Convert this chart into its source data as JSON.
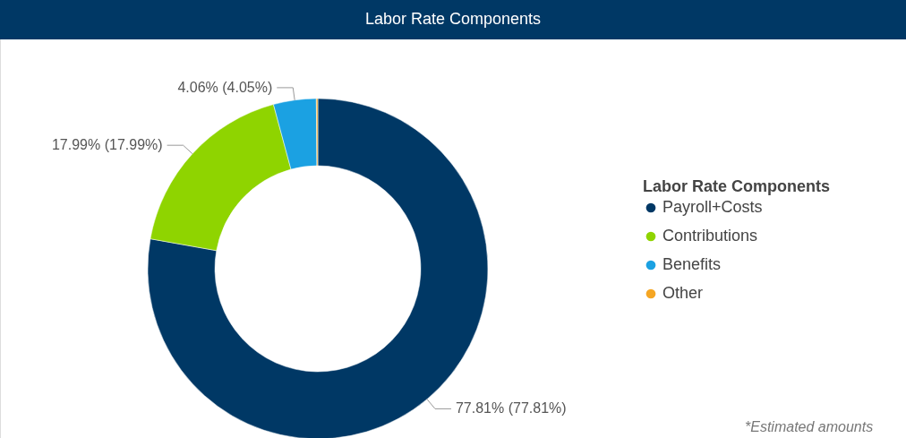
{
  "chart_data": {
    "type": "donut",
    "title": "Labor Rate Components",
    "legend_title": "Labor Rate Components",
    "categories": [
      "Payroll+Costs",
      "Contributions",
      "Benefits",
      "Other"
    ],
    "values": [
      77.81,
      17.99,
      4.06,
      0.14
    ],
    "colors": [
      "#003865",
      "#8fd400",
      "#1ba1e2",
      "#f5a623"
    ],
    "value_labels": [
      "77.81% (77.81%)",
      "17.99% (17.99%)",
      "4.06% (4.05%)",
      null
    ],
    "legend": "right",
    "annotations": [
      "*Estimated amounts"
    ]
  }
}
